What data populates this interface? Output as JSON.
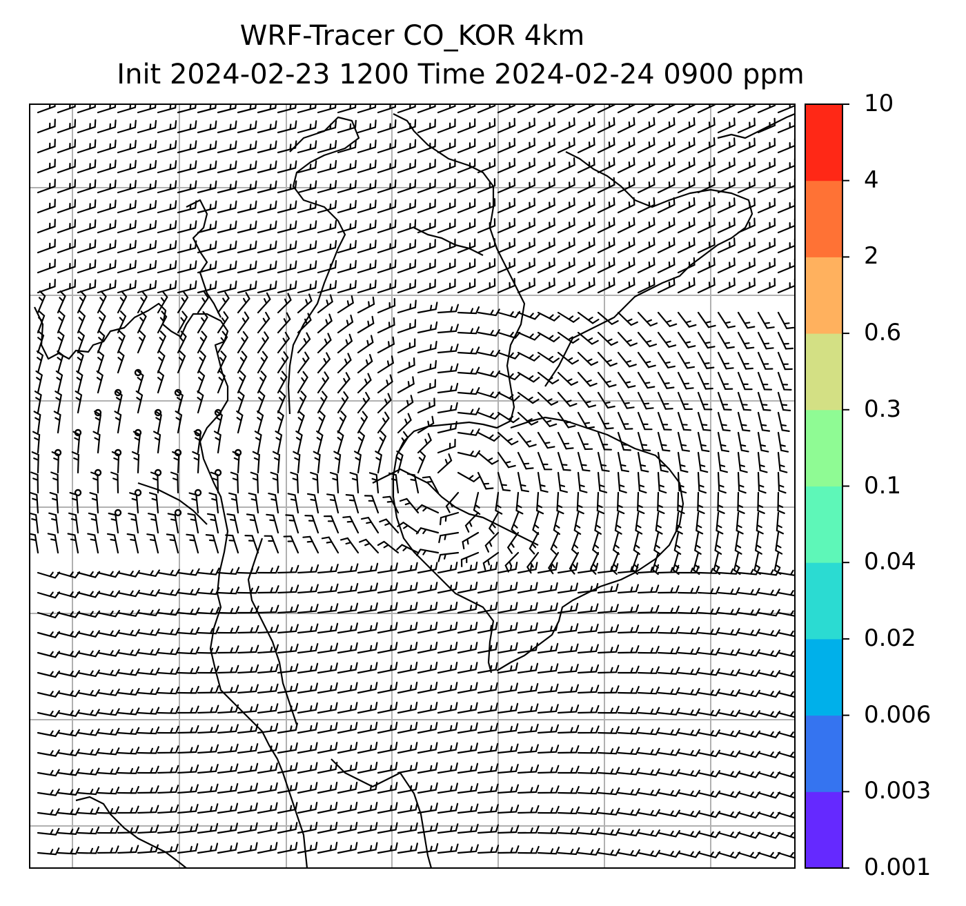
{
  "title": {
    "line1": "WRF-Tracer CO_KOR 4km",
    "line2": "Init 2024-02-23 1200 Time 2024-02-24 0900 ppm"
  },
  "colorbar": {
    "levels": [
      "0.001",
      "0.003",
      "0.006",
      "0.02",
      "0.04",
      "0.1",
      "0.3",
      "0.6",
      "2",
      "4",
      "10"
    ],
    "colors": [
      "#6529ff",
      "#3574f0",
      "#00b0ea",
      "#2bdbd2",
      "#5ef7b8",
      "#8ffb94",
      "#d3e084",
      "#ffb15e",
      "#ff7235",
      "#ff2816"
    ]
  },
  "map": {
    "wind_barbs": true,
    "coastlines": true,
    "grid": true,
    "tracer_shading": "none"
  }
}
